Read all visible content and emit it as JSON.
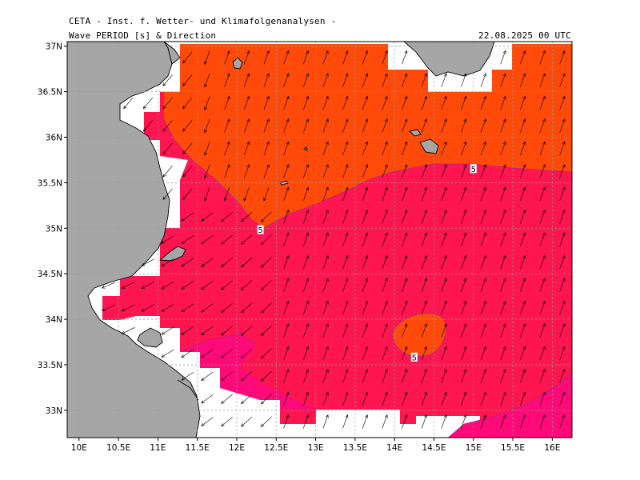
{
  "header": {
    "institute": "CETA - Inst. f. Wetter- und Klimafolgenanalysen -",
    "product": "Wave PERIOD [s] & Direction",
    "datetime": "22.08.2025 00 UTC"
  },
  "axes": {
    "lon_labels": [
      "10E",
      "10.5E",
      "11E",
      "11.5E",
      "12E",
      "12.5E",
      "13E",
      "13.5E",
      "14E",
      "14.5E",
      "15E",
      "15.5E",
      "16E"
    ],
    "lat_labels": [
      "37N",
      "36.5N",
      "36N",
      "35.5N",
      "35N",
      "34.5N",
      "34N",
      "33.5N",
      "33N"
    ],
    "lon_range": [
      9.85,
      16.25
    ],
    "lat_range": [
      32.7,
      37.05
    ]
  },
  "contours": [
    {
      "label": "5",
      "lon": 12.3,
      "lat": 34.98
    },
    {
      "label": "5",
      "lon": 15.0,
      "lat": 35.65
    },
    {
      "label": "5",
      "lon": 14.25,
      "lat": 33.58
    }
  ],
  "colors": {
    "land": "#a6a6a6",
    "period_lt5": "#ff1550",
    "period_ge5": "#ff4a0a",
    "period_low": "#ff0a78",
    "grid": "#9a9a9a"
  },
  "arrow_direction_note": "",
  "wave_direction_deg": 20
}
